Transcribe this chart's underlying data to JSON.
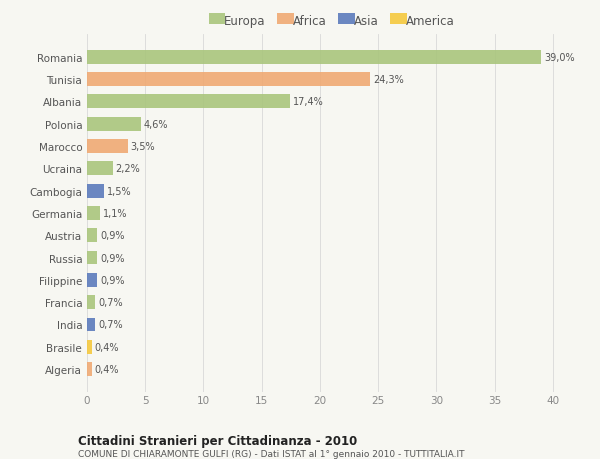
{
  "countries": [
    "Romania",
    "Tunisia",
    "Albania",
    "Polonia",
    "Marocco",
    "Ucraina",
    "Cambogia",
    "Germania",
    "Austria",
    "Russia",
    "Filippine",
    "Francia",
    "India",
    "Brasile",
    "Algeria"
  ],
  "values": [
    39.0,
    24.3,
    17.4,
    4.6,
    3.5,
    2.2,
    1.5,
    1.1,
    0.9,
    0.9,
    0.9,
    0.7,
    0.7,
    0.4,
    0.4
  ],
  "labels": [
    "39,0%",
    "24,3%",
    "17,4%",
    "4,6%",
    "3,5%",
    "2,2%",
    "1,5%",
    "1,1%",
    "0,9%",
    "0,9%",
    "0,9%",
    "0,7%",
    "0,7%",
    "0,4%",
    "0,4%"
  ],
  "continents": [
    "Europa",
    "Africa",
    "Europa",
    "Europa",
    "Africa",
    "Europa",
    "Asia",
    "Europa",
    "Europa",
    "Europa",
    "Asia",
    "Europa",
    "Asia",
    "America",
    "Africa"
  ],
  "colors": {
    "Europa": "#a8c47a",
    "Africa": "#f0a870",
    "Asia": "#5878bb",
    "America": "#f5c83a"
  },
  "background_color": "#f7f7f2",
  "title": "Cittadini Stranieri per Cittadinanza - 2010",
  "subtitle": "COMUNE DI CHIARAMONTE GULFI (RG) - Dati ISTAT al 1° gennaio 2010 - TUTTITALIA.IT",
  "xlim": [
    0,
    42
  ],
  "xticks": [
    0,
    5,
    10,
    15,
    20,
    25,
    30,
    35,
    40
  ],
  "grid_color": "#d8d8d8"
}
